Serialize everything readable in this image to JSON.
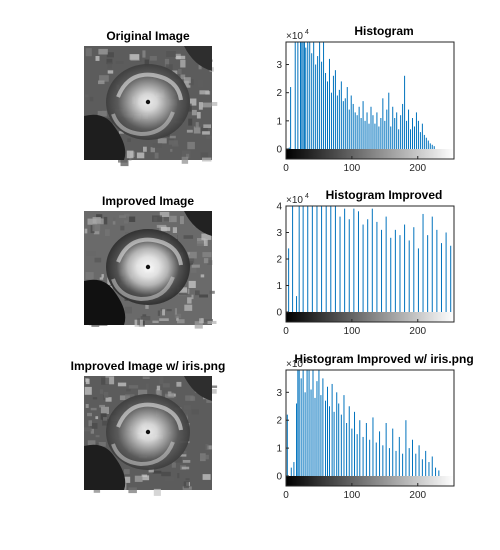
{
  "figure": {
    "panels": [
      {
        "title": "Original Image",
        "variant": "original"
      },
      {
        "title": "Improved Image",
        "variant": "improved"
      },
      {
        "title": "Improved Image w/ iris.png",
        "variant": "iris"
      }
    ]
  },
  "colors": {
    "bars": "#0072bd",
    "axes": "#262626"
  },
  "chart_data": [
    {
      "type": "bar",
      "title": "Histogram",
      "multiplier_label": "×10",
      "multiplier_exponent": "4",
      "xlim": [
        0,
        255
      ],
      "ylim": [
        0,
        3.8
      ],
      "x_ticks": [
        0,
        100,
        200
      ],
      "y_ticks": [
        0,
        1,
        2,
        3
      ],
      "colorbar": "gray",
      "bins": [
        {
          "x": 5,
          "y": 0.05
        },
        {
          "x": 7,
          "y": 2.2
        },
        {
          "x": 14,
          "y": 3.8
        },
        {
          "x": 18,
          "y": 3.8
        },
        {
          "x": 22,
          "y": 3.8
        },
        {
          "x": 24,
          "y": 3.8
        },
        {
          "x": 26,
          "y": 3.8
        },
        {
          "x": 28,
          "y": 3.8
        },
        {
          "x": 30,
          "y": 3.6
        },
        {
          "x": 33,
          "y": 3.8
        },
        {
          "x": 36,
          "y": 3.8
        },
        {
          "x": 39,
          "y": 3.4
        },
        {
          "x": 42,
          "y": 3.8
        },
        {
          "x": 45,
          "y": 3.0
        },
        {
          "x": 48,
          "y": 3.3
        },
        {
          "x": 51,
          "y": 3.8
        },
        {
          "x": 54,
          "y": 3.1
        },
        {
          "x": 57,
          "y": 3.8
        },
        {
          "x": 60,
          "y": 2.7
        },
        {
          "x": 63,
          "y": 2.4
        },
        {
          "x": 66,
          "y": 3.2
        },
        {
          "x": 69,
          "y": 2.0
        },
        {
          "x": 72,
          "y": 2.6
        },
        {
          "x": 75,
          "y": 2.8
        },
        {
          "x": 78,
          "y": 1.9
        },
        {
          "x": 81,
          "y": 2.1
        },
        {
          "x": 84,
          "y": 2.4
        },
        {
          "x": 87,
          "y": 1.7
        },
        {
          "x": 90,
          "y": 1.8
        },
        {
          "x": 93,
          "y": 2.2
        },
        {
          "x": 96,
          "y": 1.4
        },
        {
          "x": 99,
          "y": 1.9
        },
        {
          "x": 102,
          "y": 1.6
        },
        {
          "x": 105,
          "y": 1.3
        },
        {
          "x": 108,
          "y": 1.2
        },
        {
          "x": 111,
          "y": 1.5
        },
        {
          "x": 114,
          "y": 1.1
        },
        {
          "x": 117,
          "y": 1.7
        },
        {
          "x": 120,
          "y": 1.0
        },
        {
          "x": 123,
          "y": 1.3
        },
        {
          "x": 126,
          "y": 0.9
        },
        {
          "x": 129,
          "y": 1.5
        },
        {
          "x": 132,
          "y": 1.2
        },
        {
          "x": 135,
          "y": 0.9
        },
        {
          "x": 138,
          "y": 1.3
        },
        {
          "x": 141,
          "y": 0.8
        },
        {
          "x": 144,
          "y": 1.1
        },
        {
          "x": 147,
          "y": 1.8
        },
        {
          "x": 150,
          "y": 1.0
        },
        {
          "x": 153,
          "y": 1.4
        },
        {
          "x": 156,
          "y": 2.0
        },
        {
          "x": 159,
          "y": 0.8
        },
        {
          "x": 162,
          "y": 1.5
        },
        {
          "x": 165,
          "y": 1.1
        },
        {
          "x": 168,
          "y": 1.3
        },
        {
          "x": 171,
          "y": 0.7
        },
        {
          "x": 174,
          "y": 1.2
        },
        {
          "x": 177,
          "y": 1.6
        },
        {
          "x": 180,
          "y": 2.6
        },
        {
          "x": 183,
          "y": 1.0
        },
        {
          "x": 186,
          "y": 1.4
        },
        {
          "x": 189,
          "y": 0.7
        },
        {
          "x": 192,
          "y": 1.1
        },
        {
          "x": 195,
          "y": 0.8
        },
        {
          "x": 198,
          "y": 1.3
        },
        {
          "x": 201,
          "y": 1.0
        },
        {
          "x": 204,
          "y": 0.6
        },
        {
          "x": 207,
          "y": 0.9
        },
        {
          "x": 210,
          "y": 0.5
        },
        {
          "x": 213,
          "y": 0.4
        },
        {
          "x": 216,
          "y": 0.3
        },
        {
          "x": 219,
          "y": 0.2
        },
        {
          "x": 222,
          "y": 0.15
        },
        {
          "x": 225,
          "y": 0.1
        }
      ]
    },
    {
      "type": "bar",
      "title": "Histogram Improved",
      "multiplier_label": "×10",
      "multiplier_exponent": "4",
      "xlim": [
        0,
        255
      ],
      "ylim": [
        0,
        4
      ],
      "x_ticks": [
        0,
        100,
        200
      ],
      "y_ticks": [
        0,
        1,
        2,
        3,
        4
      ],
      "colorbar": "gray",
      "bins": [
        {
          "x": 4,
          "y": 2.4
        },
        {
          "x": 10,
          "y": 4.0
        },
        {
          "x": 16,
          "y": 0.6
        },
        {
          "x": 20,
          "y": 4.0
        },
        {
          "x": 26,
          "y": 4.0
        },
        {
          "x": 33,
          "y": 4.0
        },
        {
          "x": 40,
          "y": 4.0
        },
        {
          "x": 47,
          "y": 4.0
        },
        {
          "x": 54,
          "y": 4.0
        },
        {
          "x": 61,
          "y": 4.0
        },
        {
          "x": 68,
          "y": 4.0
        },
        {
          "x": 75,
          "y": 4.0
        },
        {
          "x": 82,
          "y": 3.6
        },
        {
          "x": 89,
          "y": 3.9
        },
        {
          "x": 96,
          "y": 3.5
        },
        {
          "x": 103,
          "y": 3.9
        },
        {
          "x": 110,
          "y": 3.8
        },
        {
          "x": 117,
          "y": 3.3
        },
        {
          "x": 124,
          "y": 3.5
        },
        {
          "x": 131,
          "y": 3.9
        },
        {
          "x": 138,
          "y": 3.4
        },
        {
          "x": 145,
          "y": 3.1
        },
        {
          "x": 152,
          "y": 3.6
        },
        {
          "x": 159,
          "y": 2.8
        },
        {
          "x": 166,
          "y": 3.1
        },
        {
          "x": 173,
          "y": 2.9
        },
        {
          "x": 180,
          "y": 3.3
        },
        {
          "x": 187,
          "y": 2.7
        },
        {
          "x": 194,
          "y": 3.2
        },
        {
          "x": 201,
          "y": 2.4
        },
        {
          "x": 208,
          "y": 3.7
        },
        {
          "x": 215,
          "y": 2.9
        },
        {
          "x": 222,
          "y": 3.6
        },
        {
          "x": 229,
          "y": 3.1
        },
        {
          "x": 236,
          "y": 2.6
        },
        {
          "x": 243,
          "y": 3.0
        },
        {
          "x": 250,
          "y": 2.5
        },
        {
          "x": 255,
          "y": 2.4
        }
      ]
    },
    {
      "type": "bar",
      "title": "Histogram Improved w/ iris.png",
      "multiplier_label": "×10",
      "multiplier_exponent": "4",
      "xlim": [
        0,
        255
      ],
      "ylim": [
        0,
        3.8
      ],
      "x_ticks": [
        0,
        100,
        200
      ],
      "y_ticks": [
        0,
        1,
        2,
        3
      ],
      "colorbar": "gray",
      "bins": [
        {
          "x": 2,
          "y": 2.2
        },
        {
          "x": 8,
          "y": 0.3
        },
        {
          "x": 12,
          "y": 0.5
        },
        {
          "x": 16,
          "y": 2.6
        },
        {
          "x": 18,
          "y": 3.8
        },
        {
          "x": 20,
          "y": 3.8
        },
        {
          "x": 23,
          "y": 3.5
        },
        {
          "x": 26,
          "y": 3.8
        },
        {
          "x": 29,
          "y": 3.0
        },
        {
          "x": 32,
          "y": 3.8
        },
        {
          "x": 35,
          "y": 3.8
        },
        {
          "x": 38,
          "y": 3.1
        },
        {
          "x": 41,
          "y": 3.8
        },
        {
          "x": 44,
          "y": 2.8
        },
        {
          "x": 47,
          "y": 3.4
        },
        {
          "x": 50,
          "y": 3.8
        },
        {
          "x": 53,
          "y": 2.9
        },
        {
          "x": 56,
          "y": 3.5
        },
        {
          "x": 60,
          "y": 2.7
        },
        {
          "x": 63,
          "y": 3.2
        },
        {
          "x": 66,
          "y": 2.5
        },
        {
          "x": 70,
          "y": 3.3
        },
        {
          "x": 73,
          "y": 2.3
        },
        {
          "x": 77,
          "y": 3.0
        },
        {
          "x": 80,
          "y": 2.6
        },
        {
          "x": 84,
          "y": 2.2
        },
        {
          "x": 88,
          "y": 2.9
        },
        {
          "x": 92,
          "y": 1.9
        },
        {
          "x": 96,
          "y": 2.5
        },
        {
          "x": 100,
          "y": 1.7
        },
        {
          "x": 104,
          "y": 2.3
        },
        {
          "x": 108,
          "y": 1.5
        },
        {
          "x": 112,
          "y": 2.0
        },
        {
          "x": 117,
          "y": 1.4
        },
        {
          "x": 122,
          "y": 1.9
        },
        {
          "x": 127,
          "y": 1.3
        },
        {
          "x": 132,
          "y": 2.1
        },
        {
          "x": 137,
          "y": 1.2
        },
        {
          "x": 142,
          "y": 1.6
        },
        {
          "x": 147,
          "y": 1.1
        },
        {
          "x": 152,
          "y": 1.9
        },
        {
          "x": 157,
          "y": 1.0
        },
        {
          "x": 162,
          "y": 1.7
        },
        {
          "x": 167,
          "y": 0.9
        },
        {
          "x": 172,
          "y": 1.4
        },
        {
          "x": 177,
          "y": 0.8
        },
        {
          "x": 182,
          "y": 2.0
        },
        {
          "x": 187,
          "y": 1.0
        },
        {
          "x": 192,
          "y": 1.3
        },
        {
          "x": 197,
          "y": 0.8
        },
        {
          "x": 202,
          "y": 1.1
        },
        {
          "x": 207,
          "y": 0.6
        },
        {
          "x": 212,
          "y": 0.9
        },
        {
          "x": 217,
          "y": 0.5
        },
        {
          "x": 222,
          "y": 0.7
        },
        {
          "x": 227,
          "y": 0.3
        },
        {
          "x": 232,
          "y": 0.2
        }
      ]
    }
  ]
}
